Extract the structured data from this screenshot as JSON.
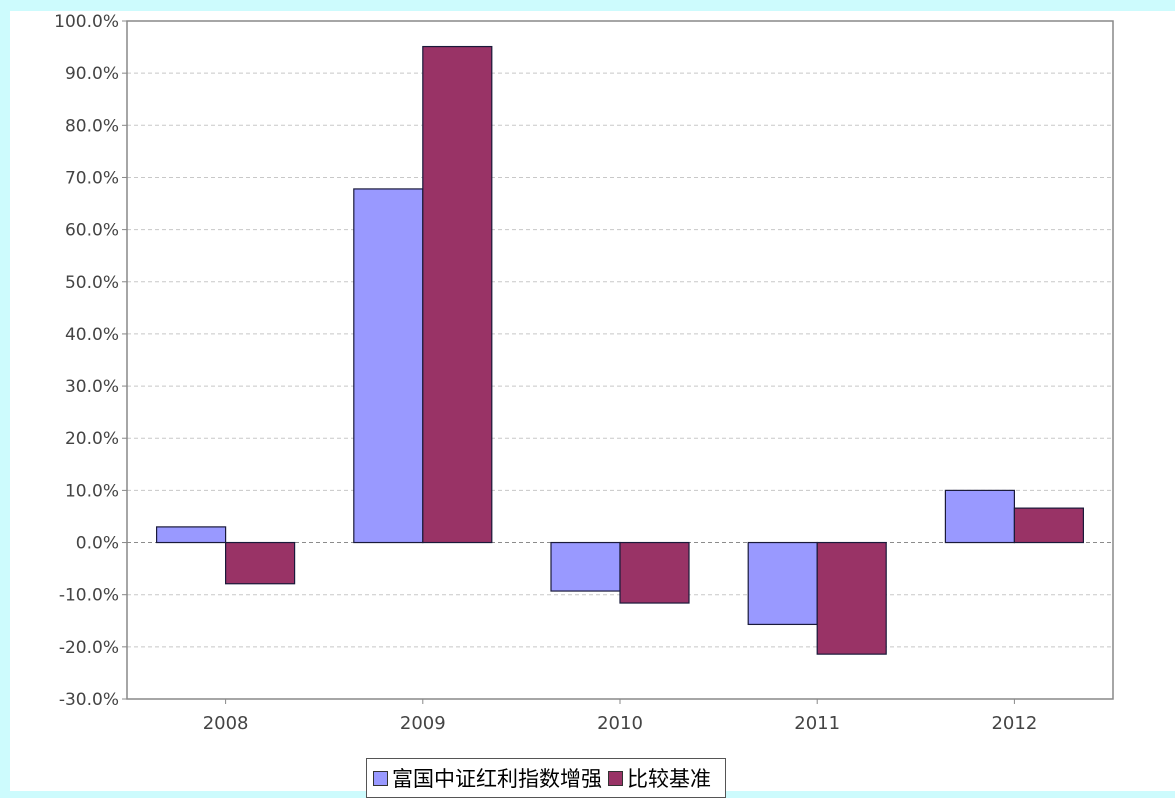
{
  "chart_data": {
    "type": "bar",
    "categories": [
      "2008",
      "2009",
      "2010",
      "2011",
      "2012"
    ],
    "series": [
      {
        "name": "富国中证红利指数增强",
        "color": "#9999ff",
        "values": [
          3.0,
          67.8,
          -9.3,
          -15.7,
          10.0
        ]
      },
      {
        "name": "比较基准",
        "color": "#993366",
        "values": [
          -7.9,
          95.1,
          -11.6,
          -21.4,
          6.6
        ]
      }
    ],
    "y_ticks": [
      "100.0%",
      "90.0%",
      "80.0%",
      "70.0%",
      "60.0%",
      "50.0%",
      "40.0%",
      "30.0%",
      "20.0%",
      "10.0%",
      "0.0%",
      "-10.0%",
      "-20.0%",
      "-30.0%"
    ],
    "ylim": [
      -30,
      100
    ],
    "y_format": "percent",
    "grid": true,
    "legend_position": "bottom"
  }
}
